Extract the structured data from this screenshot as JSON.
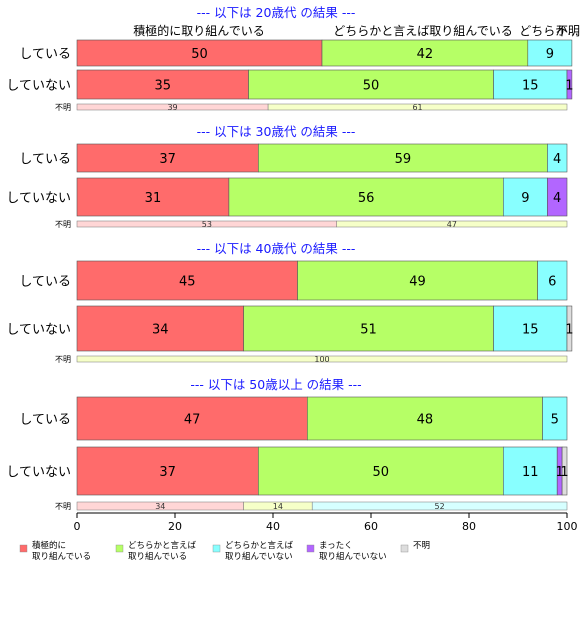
{
  "chart_data": {
    "type": "bar",
    "stacked": true,
    "orientation": "horizontal",
    "xlim": [
      0,
      100
    ],
    "xticks": [
      0,
      20,
      40,
      60,
      80,
      100
    ],
    "grid": false,
    "legend_position": "bottom",
    "top_column_labels": [
      "積極的に取り組んでいる",
      "どちらかと言えば取り組んでいる",
      "どちらか...",
      "不明"
    ],
    "categories": [
      {
        "key": "c1",
        "label": "積極的に\n取り組んでいる",
        "color": "#FF6B6B"
      },
      {
        "key": "c2",
        "label": "どちらかと言えば\n取り組んでいる",
        "color": "#B6FF66"
      },
      {
        "key": "c3",
        "label": "どちらかと言えば\n取り組んでいない",
        "color": "#88FFFF"
      },
      {
        "key": "c4",
        "label": "まったく\n取り組んでいない",
        "color": "#B266FF"
      },
      {
        "key": "c5",
        "label": "不明",
        "color": "#DDDDDD"
      }
    ],
    "groups": [
      {
        "title": "--- 以下は 20歳代 の結果 ---",
        "rows": [
          {
            "label": "している",
            "values": [
              50,
              42,
              9,
              0,
              0
            ]
          },
          {
            "label": "していない",
            "values": [
              35,
              50,
              15,
              1,
              0
            ]
          }
        ],
        "unknown": {
          "label": "不明",
          "values": [
            39,
            61,
            0,
            0,
            0
          ]
        }
      },
      {
        "title": "--- 以下は 30歳代 の結果 ---",
        "rows": [
          {
            "label": "している",
            "values": [
              37,
              59,
              4,
              0,
              0
            ]
          },
          {
            "label": "していない",
            "values": [
              31,
              56,
              9,
              4,
              0
            ]
          }
        ],
        "unknown": {
          "label": "不明",
          "values": [
            53,
            47,
            0,
            0,
            0
          ]
        }
      },
      {
        "title": "--- 以下は 40歳代 の結果 ---",
        "rows": [
          {
            "label": "している",
            "values": [
              45,
              49,
              6,
              0,
              0
            ]
          },
          {
            "label": "していない",
            "values": [
              34,
              51,
              15,
              0,
              1
            ]
          }
        ],
        "unknown": {
          "label": "不明",
          "values": [
            0,
            100,
            0,
            0,
            0
          ]
        }
      },
      {
        "title": "--- 以下は 50歳以上 の結果 ---",
        "rows": [
          {
            "label": "している",
            "values": [
              47,
              48,
              5,
              0,
              0
            ]
          },
          {
            "label": "していない",
            "values": [
              37,
              50,
              11,
              1,
              1
            ]
          }
        ],
        "unknown": {
          "label": "不明",
          "values": [
            34,
            14,
            52,
            0,
            0
          ]
        }
      }
    ]
  }
}
